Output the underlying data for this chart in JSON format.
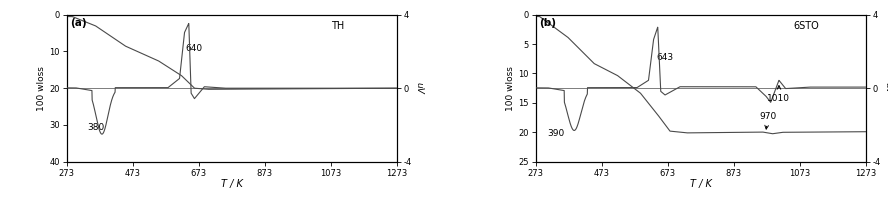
{
  "panel_a": {
    "label": "(a)",
    "tag": "TH",
    "tga_xlim": [
      273,
      1273
    ],
    "tga_ylim": [
      40,
      0
    ],
    "dta_ylim": [
      -4,
      4
    ],
    "xticks": [
      273,
      473,
      673,
      873,
      1073,
      1273
    ],
    "tga_yticks": [
      0,
      10,
      20,
      30,
      40
    ],
    "dta_yticks": [
      -4,
      0,
      4
    ],
    "xlabel": "T / K",
    "ylabel_left": "100 wloss",
    "ylabel_right": "uV",
    "annot_640": "640",
    "annot_380": "380",
    "line_color": "#4a4a4a"
  },
  "panel_b": {
    "label": "(b)",
    "tag": "6STO",
    "tga_xlim": [
      273,
      1273
    ],
    "tga_ylim": [
      25,
      0
    ],
    "dta_ylim": [
      -4,
      4
    ],
    "xticks": [
      273,
      473,
      673,
      873,
      1073,
      1273
    ],
    "tga_yticks": [
      0,
      5,
      10,
      15,
      20,
      25
    ],
    "dta_yticks": [
      -4,
      0,
      4
    ],
    "xlabel": "T / K",
    "ylabel_left": "100 wloss",
    "ylabel_right": "uV",
    "annot_643": "643",
    "annot_390": "390",
    "annot_1010": "1010",
    "annot_970": "970",
    "line_color": "#4a4a4a"
  },
  "background_color": "#ffffff",
  "figsize": [
    8.88,
    2.1
  ],
  "dpi": 100
}
